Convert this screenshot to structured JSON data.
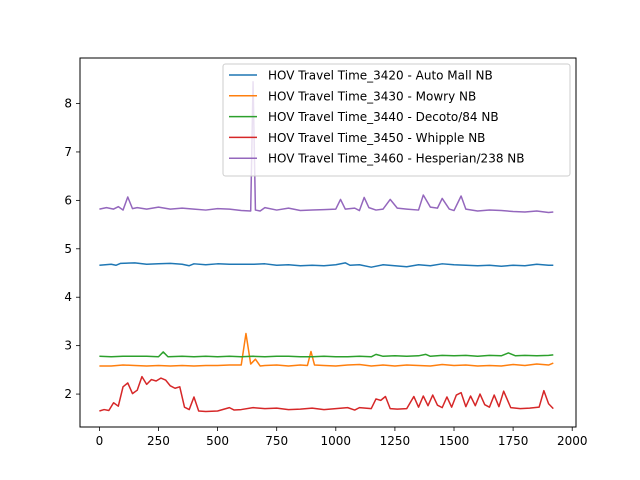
{
  "chart_data": {
    "type": "line",
    "title": "",
    "xlabel": "",
    "ylabel": "",
    "xlim": [
      -82,
      2016
    ],
    "ylim": [
      1.32,
      8.94
    ],
    "xticks": [
      0,
      250,
      500,
      750,
      1000,
      1250,
      1500,
      1750,
      2000
    ],
    "yticks": [
      2,
      3,
      4,
      5,
      6,
      7,
      8
    ],
    "grid": false,
    "legend_position": "top-right",
    "series": [
      {
        "name": "HOV Travel Time_3420 - Auto Mall NB",
        "color": "#1f77b4",
        "points": [
          [
            0,
            4.66
          ],
          [
            50,
            4.68
          ],
          [
            70,
            4.66
          ],
          [
            90,
            4.7
          ],
          [
            150,
            4.71
          ],
          [
            200,
            4.68
          ],
          [
            250,
            4.69
          ],
          [
            300,
            4.7
          ],
          [
            350,
            4.68
          ],
          [
            380,
            4.65
          ],
          [
            400,
            4.69
          ],
          [
            450,
            4.67
          ],
          [
            500,
            4.69
          ],
          [
            550,
            4.68
          ],
          [
            600,
            4.68
          ],
          [
            650,
            4.68
          ],
          [
            700,
            4.69
          ],
          [
            750,
            4.66
          ],
          [
            800,
            4.67
          ],
          [
            850,
            4.65
          ],
          [
            900,
            4.66
          ],
          [
            950,
            4.65
          ],
          [
            1000,
            4.67
          ],
          [
            1040,
            4.71
          ],
          [
            1060,
            4.66
          ],
          [
            1100,
            4.67
          ],
          [
            1150,
            4.62
          ],
          [
            1200,
            4.67
          ],
          [
            1250,
            4.65
          ],
          [
            1300,
            4.63
          ],
          [
            1350,
            4.67
          ],
          [
            1400,
            4.65
          ],
          [
            1450,
            4.69
          ],
          [
            1500,
            4.67
          ],
          [
            1550,
            4.66
          ],
          [
            1600,
            4.65
          ],
          [
            1650,
            4.66
          ],
          [
            1700,
            4.64
          ],
          [
            1750,
            4.66
          ],
          [
            1800,
            4.65
          ],
          [
            1850,
            4.68
          ],
          [
            1900,
            4.66
          ],
          [
            1920,
            4.66
          ]
        ]
      },
      {
        "name": "HOV Travel Time_3430 - Mowry NB",
        "color": "#ff7f0e",
        "points": [
          [
            0,
            2.58
          ],
          [
            50,
            2.58
          ],
          [
            100,
            2.6
          ],
          [
            150,
            2.59
          ],
          [
            200,
            2.58
          ],
          [
            250,
            2.59
          ],
          [
            300,
            2.58
          ],
          [
            350,
            2.59
          ],
          [
            400,
            2.58
          ],
          [
            450,
            2.59
          ],
          [
            500,
            2.59
          ],
          [
            550,
            2.6
          ],
          [
            600,
            2.6
          ],
          [
            620,
            3.25
          ],
          [
            640,
            2.62
          ],
          [
            660,
            2.72
          ],
          [
            680,
            2.58
          ],
          [
            700,
            2.59
          ],
          [
            750,
            2.6
          ],
          [
            800,
            2.58
          ],
          [
            850,
            2.6
          ],
          [
            880,
            2.59
          ],
          [
            895,
            2.88
          ],
          [
            910,
            2.6
          ],
          [
            950,
            2.59
          ],
          [
            1000,
            2.58
          ],
          [
            1050,
            2.6
          ],
          [
            1100,
            2.61
          ],
          [
            1150,
            2.58
          ],
          [
            1200,
            2.6
          ],
          [
            1250,
            2.58
          ],
          [
            1300,
            2.6
          ],
          [
            1350,
            2.59
          ],
          [
            1400,
            2.58
          ],
          [
            1450,
            2.61
          ],
          [
            1500,
            2.59
          ],
          [
            1550,
            2.6
          ],
          [
            1600,
            2.58
          ],
          [
            1650,
            2.59
          ],
          [
            1700,
            2.58
          ],
          [
            1750,
            2.61
          ],
          [
            1800,
            2.59
          ],
          [
            1850,
            2.62
          ],
          [
            1900,
            2.6
          ],
          [
            1920,
            2.64
          ]
        ]
      },
      {
        "name": "HOV Travel Time_3440 - Decoto/84 NB",
        "color": "#2ca02c",
        "points": [
          [
            0,
            2.78
          ],
          [
            50,
            2.77
          ],
          [
            100,
            2.78
          ],
          [
            150,
            2.78
          ],
          [
            200,
            2.78
          ],
          [
            250,
            2.77
          ],
          [
            270,
            2.87
          ],
          [
            290,
            2.77
          ],
          [
            350,
            2.78
          ],
          [
            400,
            2.77
          ],
          [
            450,
            2.78
          ],
          [
            500,
            2.77
          ],
          [
            550,
            2.78
          ],
          [
            600,
            2.77
          ],
          [
            650,
            2.78
          ],
          [
            700,
            2.77
          ],
          [
            750,
            2.78
          ],
          [
            800,
            2.78
          ],
          [
            850,
            2.77
          ],
          [
            900,
            2.77
          ],
          [
            950,
            2.78
          ],
          [
            1000,
            2.77
          ],
          [
            1050,
            2.77
          ],
          [
            1100,
            2.78
          ],
          [
            1150,
            2.77
          ],
          [
            1170,
            2.82
          ],
          [
            1200,
            2.78
          ],
          [
            1250,
            2.79
          ],
          [
            1300,
            2.78
          ],
          [
            1350,
            2.79
          ],
          [
            1380,
            2.82
          ],
          [
            1400,
            2.78
          ],
          [
            1450,
            2.8
          ],
          [
            1500,
            2.79
          ],
          [
            1550,
            2.8
          ],
          [
            1600,
            2.78
          ],
          [
            1650,
            2.8
          ],
          [
            1700,
            2.79
          ],
          [
            1730,
            2.85
          ],
          [
            1760,
            2.79
          ],
          [
            1800,
            2.8
          ],
          [
            1850,
            2.79
          ],
          [
            1900,
            2.8
          ],
          [
            1920,
            2.81
          ]
        ]
      },
      {
        "name": "HOV Travel Time_3450 - Whipple NB",
        "color": "#d62728",
        "points": [
          [
            0,
            1.65
          ],
          [
            20,
            1.68
          ],
          [
            40,
            1.66
          ],
          [
            60,
            1.82
          ],
          [
            80,
            1.75
          ],
          [
            100,
            2.15
          ],
          [
            120,
            2.23
          ],
          [
            140,
            2.01
          ],
          [
            160,
            2.08
          ],
          [
            180,
            2.36
          ],
          [
            200,
            2.2
          ],
          [
            220,
            2.3
          ],
          [
            240,
            2.27
          ],
          [
            260,
            2.33
          ],
          [
            280,
            2.29
          ],
          [
            300,
            2.17
          ],
          [
            320,
            2.12
          ],
          [
            340,
            2.15
          ],
          [
            360,
            1.73
          ],
          [
            380,
            1.68
          ],
          [
            400,
            1.94
          ],
          [
            420,
            1.65
          ],
          [
            450,
            1.64
          ],
          [
            500,
            1.65
          ],
          [
            550,
            1.72
          ],
          [
            570,
            1.67
          ],
          [
            600,
            1.68
          ],
          [
            650,
            1.72
          ],
          [
            700,
            1.7
          ],
          [
            750,
            1.71
          ],
          [
            800,
            1.68
          ],
          [
            850,
            1.69
          ],
          [
            900,
            1.71
          ],
          [
            950,
            1.68
          ],
          [
            1000,
            1.7
          ],
          [
            1050,
            1.72
          ],
          [
            1080,
            1.67
          ],
          [
            1100,
            1.72
          ],
          [
            1150,
            1.7
          ],
          [
            1170,
            1.9
          ],
          [
            1190,
            1.87
          ],
          [
            1210,
            1.95
          ],
          [
            1230,
            1.7
          ],
          [
            1260,
            1.69
          ],
          [
            1300,
            1.7
          ],
          [
            1330,
            1.95
          ],
          [
            1350,
            1.73
          ],
          [
            1370,
            1.96
          ],
          [
            1390,
            1.76
          ],
          [
            1410,
            1.98
          ],
          [
            1430,
            1.77
          ],
          [
            1450,
            1.72
          ],
          [
            1470,
            1.94
          ],
          [
            1490,
            1.73
          ],
          [
            1510,
            1.98
          ],
          [
            1530,
            2.03
          ],
          [
            1550,
            1.74
          ],
          [
            1570,
            1.96
          ],
          [
            1590,
            1.76
          ],
          [
            1610,
            2.0
          ],
          [
            1630,
            1.78
          ],
          [
            1650,
            1.73
          ],
          [
            1670,
            1.98
          ],
          [
            1690,
            1.74
          ],
          [
            1710,
            2.06
          ],
          [
            1740,
            1.72
          ],
          [
            1780,
            1.7
          ],
          [
            1820,
            1.71
          ],
          [
            1860,
            1.73
          ],
          [
            1880,
            2.07
          ],
          [
            1900,
            1.8
          ],
          [
            1920,
            1.7
          ]
        ]
      },
      {
        "name": "HOV Travel Time_3460 - Hesperian/238 NB",
        "color": "#9467bd",
        "points": [
          [
            0,
            5.82
          ],
          [
            30,
            5.85
          ],
          [
            60,
            5.82
          ],
          [
            80,
            5.87
          ],
          [
            100,
            5.8
          ],
          [
            120,
            6.07
          ],
          [
            140,
            5.83
          ],
          [
            160,
            5.85
          ],
          [
            200,
            5.82
          ],
          [
            250,
            5.86
          ],
          [
            300,
            5.82
          ],
          [
            350,
            5.84
          ],
          [
            400,
            5.82
          ],
          [
            450,
            5.8
          ],
          [
            500,
            5.83
          ],
          [
            550,
            5.82
          ],
          [
            600,
            5.79
          ],
          [
            640,
            5.78
          ],
          [
            650,
            8.45
          ],
          [
            660,
            5.8
          ],
          [
            680,
            5.78
          ],
          [
            700,
            5.85
          ],
          [
            750,
            5.8
          ],
          [
            800,
            5.84
          ],
          [
            850,
            5.79
          ],
          [
            900,
            5.8
          ],
          [
            950,
            5.81
          ],
          [
            1000,
            5.82
          ],
          [
            1020,
            6.02
          ],
          [
            1040,
            5.82
          ],
          [
            1080,
            5.84
          ],
          [
            1100,
            5.79
          ],
          [
            1120,
            6.06
          ],
          [
            1140,
            5.85
          ],
          [
            1170,
            5.8
          ],
          [
            1200,
            5.82
          ],
          [
            1230,
            6.02
          ],
          [
            1260,
            5.84
          ],
          [
            1300,
            5.82
          ],
          [
            1350,
            5.8
          ],
          [
            1370,
            6.11
          ],
          [
            1400,
            5.86
          ],
          [
            1430,
            5.84
          ],
          [
            1450,
            6.04
          ],
          [
            1480,
            5.82
          ],
          [
            1500,
            5.79
          ],
          [
            1530,
            6.09
          ],
          [
            1550,
            5.82
          ],
          [
            1600,
            5.78
          ],
          [
            1650,
            5.8
          ],
          [
            1700,
            5.79
          ],
          [
            1750,
            5.77
          ],
          [
            1800,
            5.76
          ],
          [
            1850,
            5.78
          ],
          [
            1900,
            5.75
          ],
          [
            1920,
            5.76
          ]
        ]
      }
    ]
  }
}
